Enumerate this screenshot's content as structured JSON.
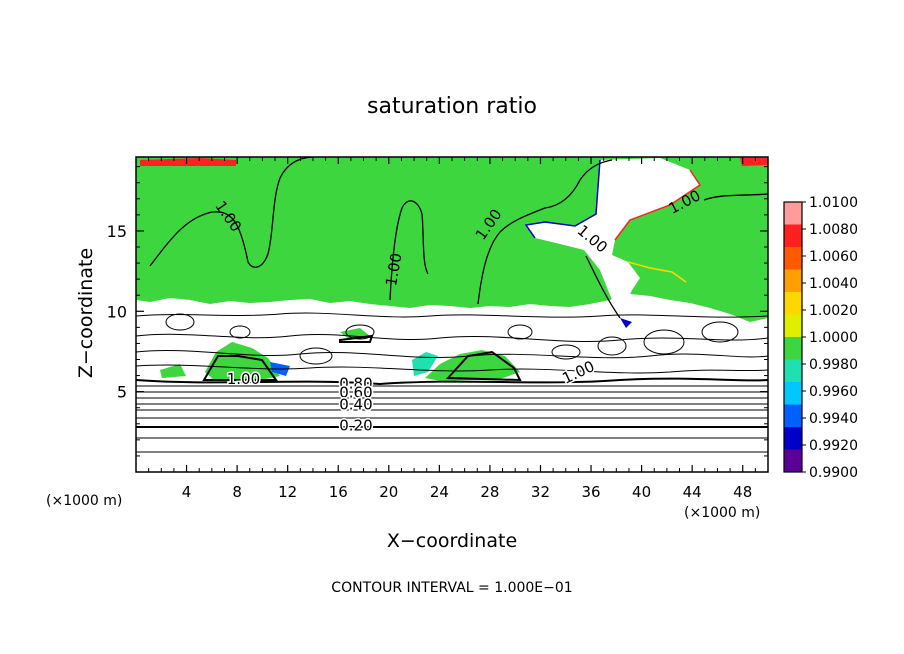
{
  "chart_data": {
    "type": "heatmap",
    "title": "saturation ratio",
    "xlabel": "X−coordinate",
    "ylabel": "Z−coordinate",
    "x_unit": "(×1000 m)",
    "z_unit": "(×1000 m)",
    "xlim": [
      0,
      50
    ],
    "ylim": [
      0,
      19.6
    ],
    "x_ticks": [
      4,
      8,
      12,
      16,
      20,
      24,
      28,
      32,
      36,
      40,
      44,
      48
    ],
    "y_ticks": [
      5,
      10,
      15
    ],
    "footer": "CONTOUR INTERVAL = 1.000E−01",
    "colorbar": {
      "labels": [
        "1.0100",
        "1.0080",
        "1.0060",
        "1.0040",
        "1.0020",
        "1.0000",
        "0.9980",
        "0.9960",
        "0.9940",
        "0.9920",
        "0.9900"
      ],
      "colors": [
        "#ff9b9b",
        "#ff2020",
        "#ff5a00",
        "#ffa000",
        "#ffd700",
        "#e0ee00",
        "#3ed63e",
        "#20e0b0",
        "#00c8ff",
        "#0060ff",
        "#0000c8",
        "#5a0096"
      ]
    },
    "contour_labels": [
      {
        "text": "1.00",
        "x": 7.3,
        "z": 15.9,
        "rotate": 55
      },
      {
        "text": "1.00",
        "x": 20.4,
        "z": 12.6,
        "rotate": -80
      },
      {
        "text": "1.00",
        "x": 27.9,
        "z": 15.4,
        "rotate": -55
      },
      {
        "text": "1.00",
        "x": 36.1,
        "z": 14.5,
        "rotate": 40
      },
      {
        "text": "1.00",
        "x": 43.4,
        "z": 16.8,
        "rotate": -28
      },
      {
        "text": "1.00",
        "x": 8.5,
        "z": 5.8,
        "rotate": 0
      },
      {
        "text": "1.00",
        "x": 35.0,
        "z": 6.2,
        "rotate": -25
      },
      {
        "text": "0.80",
        "x": 17.4,
        "z": 5.5,
        "rotate": 0
      },
      {
        "text": "0.60",
        "x": 17.4,
        "z": 4.95,
        "rotate": 0
      },
      {
        "text": "0.40",
        "x": 17.4,
        "z": 4.2,
        "rotate": 0
      },
      {
        "text": "0.20",
        "x": 17.4,
        "z": 2.9,
        "rotate": 0
      }
    ]
  }
}
